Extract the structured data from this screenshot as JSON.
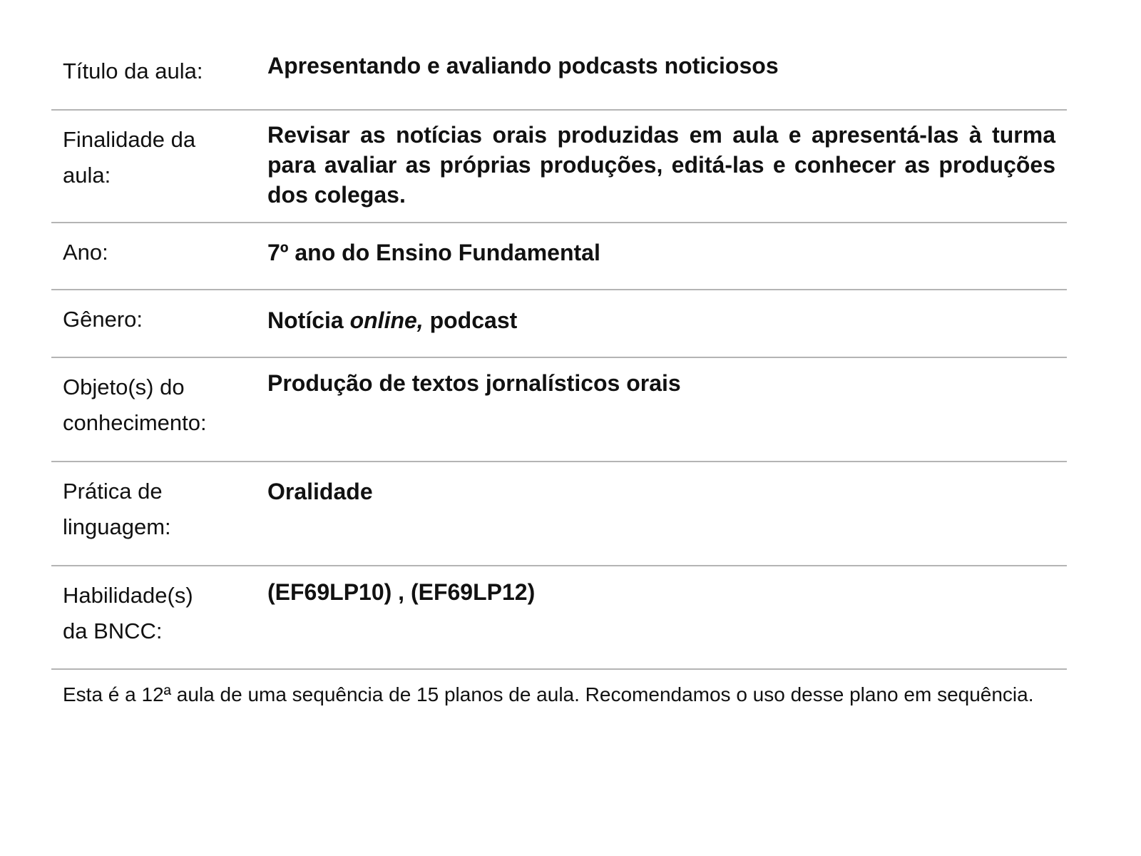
{
  "rows": [
    {
      "label": [
        "Título da aula:"
      ],
      "value": "Apresentando e avaliando podcasts noticiosos"
    },
    {
      "label": [
        "Finalidade da",
        "aula:"
      ],
      "value": "Revisar as notícias orais produzidas em aula e apresentá-las à turma para avaliar as próprias produções, editá-las e conhecer as produções dos colegas."
    },
    {
      "label": [
        "Ano:"
      ],
      "value": "7º ano do Ensino Fundamental"
    },
    {
      "label": [
        "Gênero:"
      ],
      "value_parts": [
        "Notícia ",
        "online,",
        " podcast"
      ]
    },
    {
      "label": [
        "Objeto(s) do",
        "conhecimento:"
      ],
      "value": "Produção de textos jornalísticos orais"
    },
    {
      "label": [
        "Prática de",
        "linguagem:"
      ],
      "value": "Oralidade"
    },
    {
      "label": [
        "Habilidade(s)",
        "da BNCC:"
      ],
      "value": "(EF69LP10) , (EF69LP12)"
    }
  ],
  "footer": "Esta é a 12ª aula de uma sequência de 15 planos de aula. Recomendamos o uso desse plano em sequência."
}
